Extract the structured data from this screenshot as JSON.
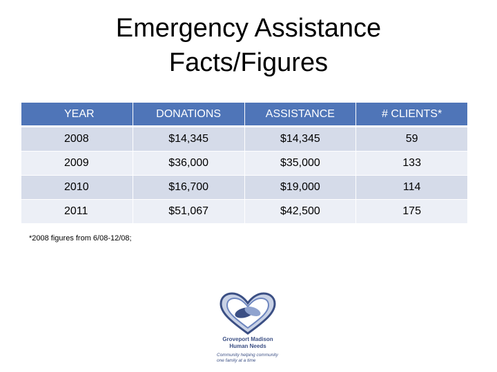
{
  "title": {
    "line1": "Emergency Assistance",
    "line2": "Facts/Figures"
  },
  "table": {
    "headers": [
      "YEAR",
      "DONATIONS",
      "ASSISTANCE",
      "# CLIENTS*"
    ],
    "rows": [
      [
        "2008",
        "$14,345",
        "$14,345",
        "59"
      ],
      [
        "2009",
        "$36,000",
        "$35,000",
        "133"
      ],
      [
        "2010",
        "$16,700",
        "$19,000",
        "114"
      ],
      [
        "2011",
        "$51,067",
        "$42,500",
        "175"
      ]
    ]
  },
  "footnote": "*2008 figures from 6/08-12/08;",
  "logo": {
    "org_line1": "Groveport Madison",
    "org_line2": "Human Needs",
    "tagline_line1": "Community helping community",
    "tagline_line2": "one family at a time"
  },
  "colors": {
    "header_bg": "#4f75b8",
    "row_odd": "#d5dbe9",
    "row_even": "#eceff6",
    "logo_blue": "#3b4f84"
  }
}
